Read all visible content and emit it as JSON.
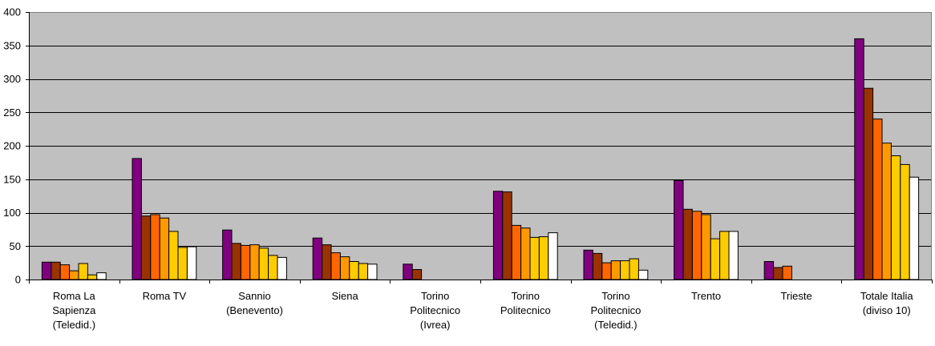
{
  "chart_data": {
    "type": "bar",
    "title": "",
    "xlabel": "",
    "ylabel": "",
    "ylim": [
      0,
      400
    ],
    "yticks": [
      0,
      50,
      100,
      150,
      200,
      250,
      300,
      350,
      400
    ],
    "grid": true,
    "legend": "none",
    "plot_background": "#c0c0c0",
    "categories": [
      [
        "Roma La",
        "Sapienza",
        "(Teledid.)"
      ],
      [
        "Roma TV"
      ],
      [
        "Sannio",
        "(Benevento)"
      ],
      [
        "Siena"
      ],
      [
        "Torino",
        "Politecnico",
        "(Ivrea)"
      ],
      [
        "Torino",
        "Politecnico"
      ],
      [
        "Torino",
        "Politecnico",
        "(Teledid.)"
      ],
      [
        "Trento"
      ],
      [
        "Trieste"
      ],
      [
        "Totale Italia",
        "(diviso 10)"
      ]
    ],
    "series": [
      {
        "color": "#800080",
        "values": [
          26,
          181,
          74,
          62,
          23,
          132,
          44,
          148,
          27,
          360
        ]
      },
      {
        "color": "#993300",
        "values": [
          26,
          95,
          54,
          52,
          15,
          131,
          39,
          105,
          18,
          286
        ]
      },
      {
        "color": "#ff6600",
        "values": [
          22,
          97,
          51,
          40,
          0,
          81,
          25,
          102,
          20,
          240
        ]
      },
      {
        "color": "#ff9900",
        "values": [
          13,
          92,
          52,
          34,
          0,
          77,
          28,
          97,
          0,
          204
        ]
      },
      {
        "color": "#ffcc00",
        "values": [
          24,
          72,
          47,
          27,
          0,
          63,
          28,
          61,
          0,
          185
        ]
      },
      {
        "color": "#ffcc00",
        "values": [
          7,
          48,
          36,
          24,
          0,
          64,
          31,
          72,
          0,
          172
        ]
      },
      {
        "color": "#ffffff",
        "values": [
          10,
          49,
          33,
          23,
          0,
          70,
          14,
          72,
          0,
          153
        ]
      }
    ]
  }
}
